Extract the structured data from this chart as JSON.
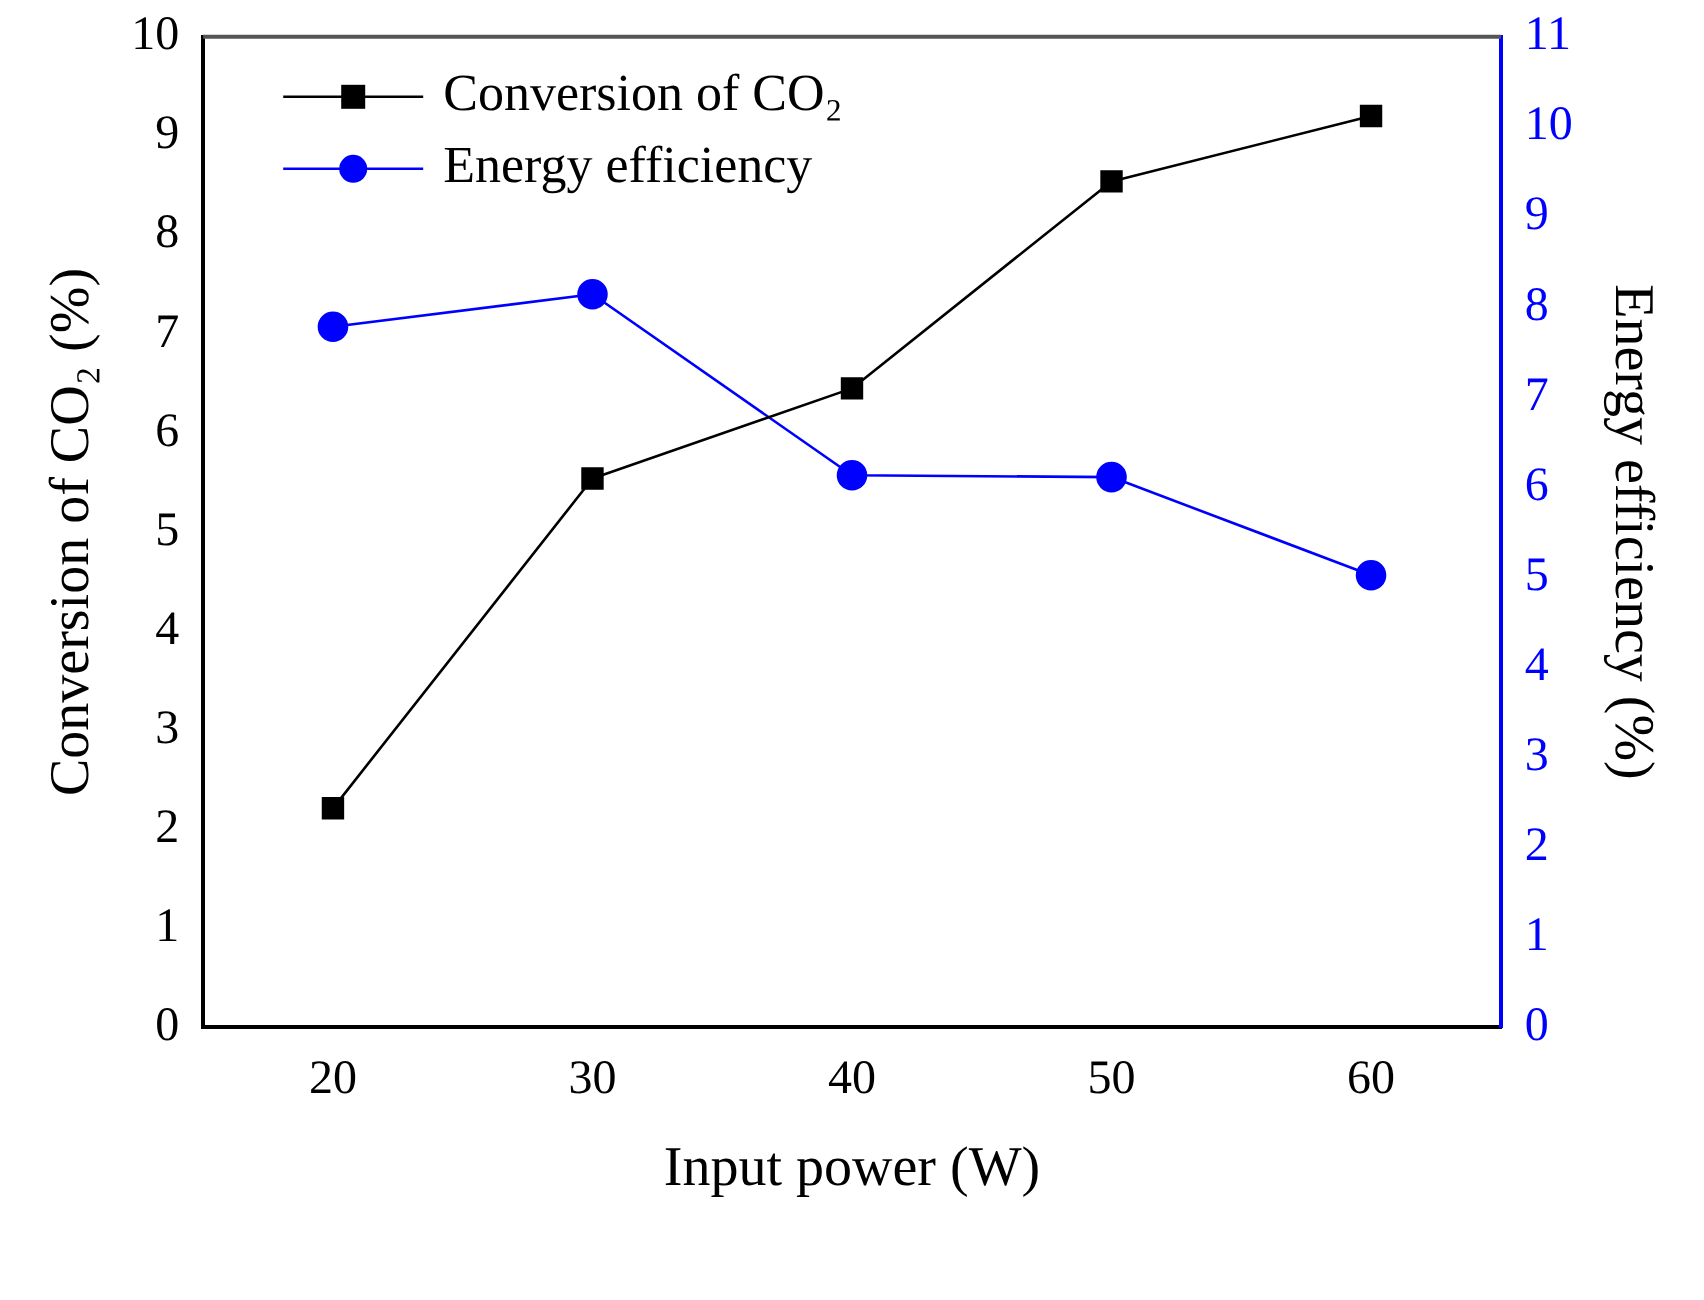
{
  "chart_data": {
    "type": "line",
    "xlabel": "Input power (W)",
    "ylabel": "Conversion of CO₂ (%)",
    "y2label": "Energy efficiency (%)",
    "x": [
      20,
      30,
      40,
      50,
      60
    ],
    "xlim": [
      15,
      65
    ],
    "xticks": [
      20,
      30,
      40,
      50,
      60
    ],
    "ylim": [
      0,
      10
    ],
    "yticks": [
      0,
      1,
      2,
      3,
      4,
      5,
      6,
      7,
      8,
      9,
      10
    ],
    "y2lim": [
      0,
      11
    ],
    "y2ticks": [
      0,
      1,
      2,
      3,
      4,
      5,
      6,
      7,
      8,
      9,
      10,
      11
    ],
    "grid": false,
    "legend": "top left",
    "line_style": "solid",
    "series": [
      {
        "name": "Conversion of CO₂",
        "color": "#000000",
        "marker": "square",
        "values": [
          2.21,
          5.54,
          6.45,
          8.54,
          9.2
        ]
      },
      {
        "name": "Energy efficiency",
        "color": "#0000ff",
        "marker": "circle",
        "axis": "y2",
        "values": [
          7.78,
          8.14,
          6.13,
          6.11,
          5.02
        ]
      }
    ]
  }
}
